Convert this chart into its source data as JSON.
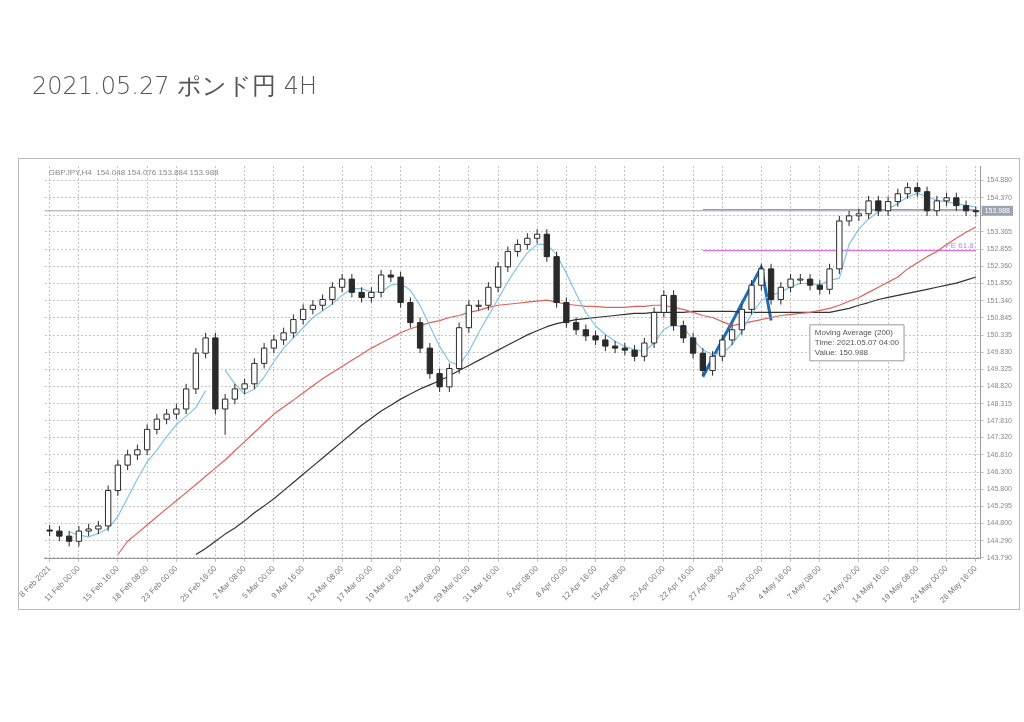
{
  "chart_data": {
    "type": "candlestick",
    "title": "2021.05.27  ポンド円 4H",
    "annotations": [
      "GBPJPY,H4  154.048 154.076 153.884 153.988",
      {
        "text": "Moving Average (200)\nTime: 2021.05.07 04:00\nValue: 150.988",
        "x": "7 May 08:00",
        "y": 150.988
      }
    ],
    "categories": [
      "8 Feb 2021",
      null,
      null,
      "11 Feb 00:00",
      null,
      null,
      null,
      "15 Feb 16:00",
      null,
      null,
      "18 Feb 08:00",
      null,
      null,
      "23 Feb 00:00",
      null,
      null,
      null,
      "25 Feb 16:00",
      null,
      null,
      "2 Mar 08:00",
      null,
      null,
      "5 Mar 00:00",
      null,
      null,
      "9 Mar 16:00",
      null,
      null,
      null,
      "12 Mar 08:00",
      null,
      null,
      "17 Mar 00:00",
      null,
      null,
      "19 Mar 16:00",
      null,
      null,
      null,
      "24 Mar 08:00",
      null,
      null,
      "29 Mar 00:00",
      null,
      null,
      "31 Mar 16:00",
      null,
      null,
      null,
      "5 Apr 08:00",
      null,
      null,
      "8 Apr 00:00",
      null,
      null,
      "12 Apr 16:00",
      null,
      null,
      "15 Apr 08:00",
      null,
      null,
      null,
      "20 Apr 00:00",
      null,
      null,
      "22 Apr 16:00",
      null,
      null,
      "27 Apr 08:00",
      null,
      null,
      null,
      "30 Apr 00:00",
      null,
      null,
      "4 May 16:00",
      null,
      null,
      "7 May 08:00",
      null,
      null,
      null,
      "12 May 00:00",
      null,
      null,
      "14 May 16:00",
      null,
      null,
      "19 May 08:00",
      null,
      null,
      "24 May 00:00",
      null,
      null,
      "26 May 16:00"
    ],
    "ylim": [
      143.75,
      155.3
    ],
    "yticks": [
      {
        "value": 143.79,
        "label": "143.790"
      },
      {
        "value": 144.29,
        "label": "144.290"
      },
      {
        "value": 144.8,
        "label": "144.800"
      },
      {
        "value": 145.295,
        "label": "145.295"
      },
      {
        "value": 145.8,
        "label": "145.800"
      },
      {
        "value": 146.3,
        "label": "146.300"
      },
      {
        "value": 146.81,
        "label": "146.810"
      },
      {
        "value": 147.32,
        "label": "147.320"
      },
      {
        "value": 147.81,
        "label": "147.810"
      },
      {
        "value": 148.315,
        "label": "148.315"
      },
      {
        "value": 148.82,
        "label": "148.820"
      },
      {
        "value": 149.325,
        "label": "149.325"
      },
      {
        "value": 149.83,
        "label": "149.830"
      },
      {
        "value": 150.335,
        "label": "150.335"
      },
      {
        "value": 150.845,
        "label": "150.845"
      },
      {
        "value": 151.34,
        "label": "151.340"
      },
      {
        "value": 151.85,
        "label": "151.850"
      },
      {
        "value": 152.36,
        "label": "152.360"
      },
      {
        "value": 152.855,
        "label": "152.855"
      },
      {
        "value": 153.365,
        "label": "153.365"
      },
      {
        "value": 153.86,
        "label": null
      },
      {
        "value": 154.37,
        "label": "154.370"
      },
      {
        "value": 154.88,
        "label": "154.880"
      }
    ],
    "grid": true,
    "ohlc": [
      [
        144.6,
        144.75,
        144.42,
        144.57
      ],
      [
        144.57,
        144.72,
        144.27,
        144.42
      ],
      [
        144.42,
        144.57,
        144.12,
        144.27
      ],
      [
        144.27,
        144.72,
        144.12,
        144.57
      ],
      [
        144.57,
        144.78,
        144.42,
        144.63
      ],
      [
        144.63,
        144.87,
        144.48,
        144.72
      ],
      [
        144.72,
        145.91,
        144.57,
        145.76
      ],
      [
        145.76,
        146.66,
        145.61,
        146.51
      ],
      [
        146.51,
        146.96,
        146.36,
        146.81
      ],
      [
        146.81,
        147.11,
        146.66,
        146.96
      ],
      [
        146.96,
        147.71,
        146.81,
        147.56
      ],
      [
        147.56,
        148.01,
        147.41,
        147.86
      ],
      [
        147.86,
        148.16,
        147.71,
        148.01
      ],
      [
        148.01,
        148.31,
        147.86,
        148.16
      ],
      [
        148.16,
        148.9,
        148.01,
        148.75
      ],
      [
        148.75,
        149.95,
        148.6,
        149.8
      ],
      [
        149.8,
        150.4,
        149.65,
        150.25
      ],
      [
        150.25,
        150.4,
        148.01,
        148.16
      ],
      [
        148.16,
        148.6,
        147.4,
        148.45
      ],
      [
        148.45,
        148.9,
        148.3,
        148.75
      ],
      [
        148.75,
        149.05,
        148.6,
        148.9
      ],
      [
        148.9,
        149.65,
        148.75,
        149.5
      ],
      [
        149.5,
        150.1,
        149.35,
        149.95
      ],
      [
        149.95,
        150.34,
        149.8,
        150.19
      ],
      [
        150.19,
        150.55,
        150.04,
        150.4
      ],
      [
        150.4,
        150.94,
        150.25,
        150.79
      ],
      [
        150.79,
        151.24,
        150.64,
        151.09
      ],
      [
        151.09,
        151.36,
        150.94,
        151.21
      ],
      [
        151.21,
        151.53,
        151.06,
        151.38
      ],
      [
        151.38,
        151.89,
        151.23,
        151.74
      ],
      [
        151.74,
        152.13,
        151.59,
        151.98
      ],
      [
        151.98,
        152.13,
        151.44,
        151.59
      ],
      [
        151.59,
        151.74,
        151.29,
        151.44
      ],
      [
        151.44,
        151.74,
        151.29,
        151.59
      ],
      [
        151.59,
        152.25,
        151.44,
        152.1
      ],
      [
        152.1,
        152.25,
        151.89,
        152.04
      ],
      [
        152.04,
        152.19,
        151.14,
        151.29
      ],
      [
        151.29,
        151.44,
        150.55,
        150.7
      ],
      [
        150.7,
        150.85,
        149.8,
        149.95
      ],
      [
        149.95,
        150.1,
        149.05,
        149.2
      ],
      [
        149.2,
        149.35,
        148.66,
        148.81
      ],
      [
        148.81,
        149.5,
        148.66,
        149.35
      ],
      [
        149.35,
        150.7,
        149.2,
        150.55
      ],
      [
        150.55,
        151.36,
        150.4,
        151.21
      ],
      [
        151.21,
        151.36,
        151.06,
        151.21
      ],
      [
        151.21,
        151.89,
        151.06,
        151.74
      ],
      [
        151.74,
        152.49,
        151.59,
        152.34
      ],
      [
        152.34,
        152.94,
        152.19,
        152.79
      ],
      [
        152.79,
        153.15,
        152.64,
        153.0
      ],
      [
        153.0,
        153.33,
        152.85,
        153.18
      ],
      [
        153.18,
        153.45,
        153.03,
        153.3
      ],
      [
        153.3,
        153.45,
        152.49,
        152.64
      ],
      [
        152.64,
        152.79,
        151.14,
        151.29
      ],
      [
        151.29,
        151.44,
        150.55,
        150.7
      ],
      [
        150.7,
        150.85,
        150.34,
        150.49
      ],
      [
        150.49,
        150.64,
        150.16,
        150.31
      ],
      [
        150.31,
        150.46,
        150.04,
        150.19
      ],
      [
        150.19,
        150.34,
        149.86,
        150.01
      ],
      [
        150.01,
        150.16,
        149.8,
        149.95
      ],
      [
        149.95,
        150.1,
        149.74,
        149.89
      ],
      [
        149.89,
        150.04,
        149.56,
        149.71
      ],
      [
        149.71,
        150.25,
        149.56,
        150.1
      ],
      [
        150.1,
        151.15,
        149.95,
        151.0
      ],
      [
        151.0,
        151.65,
        150.85,
        151.5
      ],
      [
        151.5,
        151.65,
        150.46,
        150.61
      ],
      [
        150.61,
        150.76,
        150.1,
        150.25
      ],
      [
        150.25,
        150.4,
        149.65,
        149.8
      ],
      [
        149.8,
        149.95,
        149.14,
        149.29
      ],
      [
        149.29,
        149.86,
        149.14,
        149.71
      ],
      [
        149.71,
        150.34,
        149.56,
        150.19
      ],
      [
        150.19,
        150.64,
        150.04,
        150.49
      ],
      [
        150.49,
        151.24,
        150.34,
        151.09
      ],
      [
        151.09,
        151.95,
        150.94,
        151.8
      ],
      [
        151.8,
        152.43,
        151.65,
        152.28
      ],
      [
        152.28,
        152.43,
        151.23,
        151.38
      ],
      [
        151.38,
        151.89,
        151.23,
        151.74
      ],
      [
        151.74,
        152.13,
        151.59,
        151.98
      ],
      [
        151.98,
        152.13,
        151.83,
        151.98
      ],
      [
        151.98,
        152.13,
        151.65,
        151.8
      ],
      [
        151.8,
        151.95,
        151.53,
        151.68
      ],
      [
        151.68,
        152.43,
        151.53,
        152.28
      ],
      [
        152.28,
        153.84,
        152.13,
        153.69
      ],
      [
        153.69,
        153.99,
        153.54,
        153.84
      ],
      [
        153.84,
        154.05,
        153.69,
        153.9
      ],
      [
        153.9,
        154.43,
        153.75,
        154.28
      ],
      [
        154.28,
        154.43,
        153.84,
        153.99
      ],
      [
        153.99,
        154.41,
        153.84,
        154.26
      ],
      [
        154.26,
        154.64,
        154.11,
        154.49
      ],
      [
        154.49,
        154.82,
        154.34,
        154.67
      ],
      [
        154.67,
        154.82,
        154.4,
        154.55
      ],
      [
        154.55,
        154.7,
        153.84,
        153.99
      ],
      [
        153.99,
        154.43,
        153.84,
        154.28
      ],
      [
        154.28,
        154.52,
        154.13,
        154.37
      ],
      [
        154.37,
        154.52,
        153.99,
        154.14
      ],
      [
        154.14,
        154.29,
        153.84,
        153.99
      ],
      [
        153.99,
        154.11,
        153.81,
        153.988
      ]
    ],
    "series": [
      {
        "type": "line",
        "color": "#7fc4e8",
        "values": [
          null,
          null,
          144.55,
          144.45,
          144.4,
          144.5,
          144.65,
          145.0,
          145.55,
          146.1,
          146.6,
          146.95,
          147.35,
          147.7,
          147.95,
          148.2,
          148.7,
          null,
          149.3,
          148.9,
          148.6,
          148.75,
          149.1,
          149.55,
          149.95,
          150.25,
          150.55,
          150.85,
          151.05,
          151.25,
          151.5,
          151.7,
          151.7,
          151.6,
          151.6,
          151.8,
          151.85,
          151.65,
          151.2,
          150.6,
          150.0,
          149.55,
          149.45,
          149.85,
          150.4,
          150.9,
          151.4,
          151.9,
          152.35,
          152.75,
          153.0,
          153.0,
          152.7,
          152.15,
          151.55,
          151.0,
          150.6,
          150.35,
          150.15,
          150.0,
          149.9,
          149.85,
          150.1,
          150.5,
          150.65,
          150.55,
          150.2,
          149.9,
          149.75,
          149.8,
          150.05,
          150.45,
          150.95,
          151.35,
          151.5,
          151.6,
          151.75,
          151.85,
          151.85,
          151.8,
          151.95,
          152.0,
          153.0,
          153.45,
          153.75,
          153.95,
          154.05,
          154.2,
          154.4,
          154.5,
          154.4,
          154.3,
          154.25,
          154.2,
          154.15,
          154.1
        ]
      },
      {
        "type": "line",
        "color": "#e0605a",
        "values": [
          null,
          null,
          null,
          null,
          null,
          null,
          null,
          143.88,
          144.27,
          144.51,
          144.75,
          144.99,
          145.23,
          145.46,
          145.7,
          145.94,
          146.18,
          146.42,
          146.66,
          146.93,
          147.2,
          147.47,
          147.74,
          148.01,
          148.22,
          148.42,
          148.63,
          148.84,
          149.05,
          149.23,
          149.41,
          149.59,
          149.77,
          149.95,
          150.1,
          150.25,
          150.4,
          150.52,
          150.61,
          150.7,
          150.76,
          150.85,
          150.91,
          151.0,
          151.06,
          151.15,
          151.21,
          151.24,
          151.27,
          151.3,
          151.33,
          151.36,
          151.3,
          151.24,
          151.21,
          151.18,
          151.18,
          151.15,
          151.15,
          151.15,
          151.18,
          151.18,
          151.21,
          151.21,
          151.15,
          151.09,
          151.0,
          150.91,
          150.85,
          150.73,
          150.61,
          150.67,
          150.73,
          150.79,
          150.85,
          150.91,
          150.94,
          150.97,
          151.0,
          151.06,
          151.12,
          151.21,
          151.33,
          151.44,
          151.59,
          151.74,
          151.89,
          152.04,
          152.28,
          152.46,
          152.64,
          152.79,
          153.0,
          153.18,
          153.36,
          153.51
        ]
      },
      {
        "type": "line",
        "color": "#333333",
        "values": [
          null,
          null,
          null,
          null,
          null,
          null,
          null,
          null,
          null,
          null,
          null,
          null,
          null,
          null,
          null,
          143.88,
          144.06,
          144.27,
          144.48,
          144.66,
          144.87,
          145.11,
          145.31,
          145.52,
          145.76,
          146.0,
          146.24,
          146.48,
          146.72,
          146.96,
          147.2,
          147.44,
          147.68,
          147.89,
          148.1,
          148.27,
          148.45,
          148.6,
          148.75,
          148.87,
          148.99,
          149.14,
          149.29,
          149.44,
          149.59,
          149.74,
          149.89,
          150.04,
          150.19,
          150.34,
          150.46,
          150.58,
          150.67,
          150.73,
          150.79,
          150.82,
          150.85,
          150.88,
          150.91,
          150.94,
          150.97,
          150.97,
          151.0,
          151.0,
          151.0,
          151.0,
          151.03,
          151.03,
          151.03,
          151.03,
          151.03,
          151.0,
          151.0,
          151.0,
          151.0,
          151.0,
          151.0,
          151.0,
          151.0,
          151.0,
          151.0,
          151.06,
          151.12,
          151.21,
          151.29,
          151.38,
          151.44,
          151.5,
          151.56,
          151.62,
          151.68,
          151.74,
          151.8,
          151.86,
          151.95,
          152.04
        ]
      },
      {
        "type": "line",
        "color": "#1f6db5",
        "values": [
          null,
          null,
          null,
          null,
          null,
          null,
          null,
          null,
          null,
          null,
          null,
          null,
          null,
          null,
          null,
          null,
          null,
          null,
          null,
          null,
          null,
          null,
          null,
          null,
          null,
          null,
          null,
          null,
          null,
          null,
          null,
          null,
          null,
          null,
          null,
          null,
          null,
          null,
          null,
          null,
          null,
          null,
          null,
          null,
          null,
          null,
          null,
          null,
          null,
          null,
          null,
          null,
          null,
          null,
          null,
          null,
          null,
          null,
          null,
          null,
          null,
          null,
          null,
          null,
          null,
          null,
          null,
          149.11,
          149.65,
          150.19,
          150.72,
          151.26,
          151.8,
          152.34,
          150.76,
          null,
          null,
          null,
          null,
          null,
          null,
          null,
          null,
          null,
          null,
          null,
          null,
          null,
          null,
          null,
          null,
          null,
          null,
          null,
          null,
          null
        ]
      },
      {
        "type": "line",
        "color": "#dd77dd",
        "values": [
          null,
          null,
          null,
          null,
          null,
          null,
          null,
          null,
          null,
          null,
          null,
          null,
          null,
          null,
          null,
          null,
          null,
          null,
          null,
          null,
          null,
          null,
          null,
          null,
          null,
          null,
          null,
          null,
          null,
          null,
          null,
          null,
          null,
          null,
          null,
          null,
          null,
          null,
          null,
          null,
          null,
          null,
          null,
          null,
          null,
          null,
          null,
          null,
          null,
          null,
          null,
          null,
          null,
          null,
          null,
          null,
          null,
          null,
          null,
          null,
          null,
          null,
          null,
          null,
          null,
          null,
          null,
          154.02,
          154.02,
          154.02,
          154.02,
          154.02,
          154.02,
          154.02,
          154.02,
          154.02,
          154.02,
          154.02,
          154.02,
          154.02,
          154.02,
          154.02,
          154.02,
          154.02,
          154.02,
          154.02,
          154.02,
          154.02,
          154.02,
          154.02,
          154.02,
          154.02,
          154.02,
          154.02,
          154.02,
          154.02
        ]
      },
      {
        "name": "FE 61.8",
        "type": "line",
        "color": "#dd77dd",
        "values": [
          null,
          null,
          null,
          null,
          null,
          null,
          null,
          null,
          null,
          null,
          null,
          null,
          null,
          null,
          null,
          null,
          null,
          null,
          null,
          null,
          null,
          null,
          null,
          null,
          null,
          null,
          null,
          null,
          null,
          null,
          null,
          null,
          null,
          null,
          null,
          null,
          null,
          null,
          null,
          null,
          null,
          null,
          null,
          null,
          null,
          null,
          null,
          null,
          null,
          null,
          null,
          null,
          null,
          null,
          null,
          null,
          null,
          null,
          null,
          null,
          null,
          null,
          null,
          null,
          null,
          null,
          null,
          152.82,
          152.82,
          152.82,
          152.82,
          152.82,
          152.82,
          152.82,
          152.82,
          152.82,
          152.82,
          152.82,
          152.82,
          152.82,
          152.82,
          152.82,
          152.82,
          152.82,
          152.82,
          152.82,
          152.82,
          152.82,
          152.82,
          152.82,
          152.82,
          152.82,
          152.82,
          152.82,
          152.82,
          152.82
        ]
      }
    ],
    "ref_lines": [
      {
        "axis": "y",
        "value": 153.988,
        "label": "153.988",
        "color": "#9aa4b0"
      }
    ]
  }
}
